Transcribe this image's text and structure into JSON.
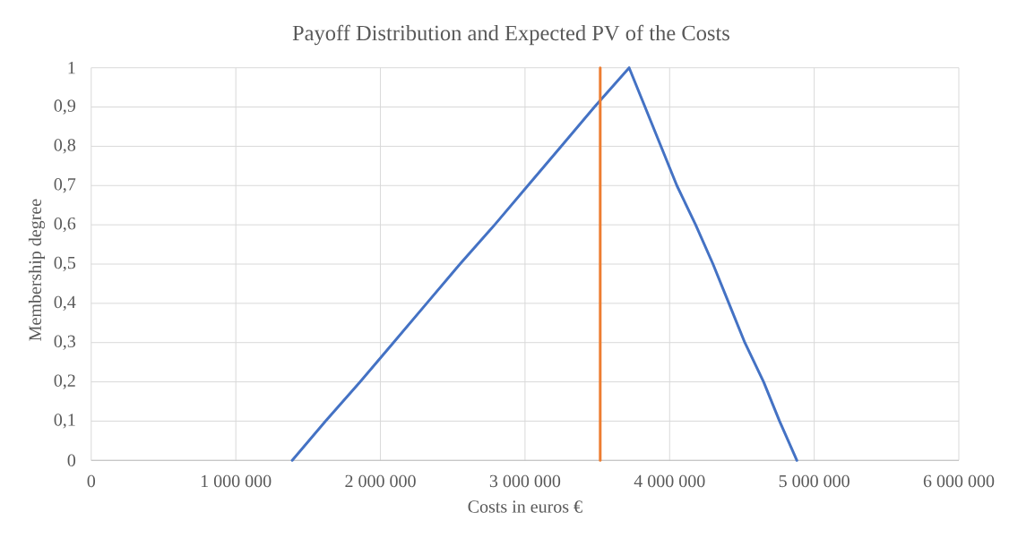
{
  "chart_data": {
    "type": "line",
    "title": "Payoff Distribution and Expected PV of the Costs",
    "xlabel": "Costs in euros €",
    "ylabel": "Membership degree",
    "series": [
      {
        "color": "#4472c4",
        "x": [
          1390000,
          1620000,
          1860000,
          2090000,
          2320000,
          2550000,
          2790000,
          3020000,
          3250000,
          3480000,
          3720000,
          3830000,
          3940000,
          4050000,
          4180000,
          4300000,
          4410000,
          4520000,
          4650000,
          4760000,
          4880000
        ],
        "values": [
          0,
          0.1,
          0.2,
          0.3,
          0.4,
          0.5,
          0.6,
          0.7,
          0.8,
          0.9,
          1,
          0.9,
          0.8,
          0.7,
          0.6,
          0.5,
          0.4,
          0.3,
          0.2,
          0.1,
          0
        ]
      },
      {
        "color": "#ed7d31",
        "x": [
          3520000,
          3520000
        ],
        "values": [
          0,
          1
        ]
      }
    ],
    "xlim": [
      0,
      6000000
    ],
    "xticks": [
      0,
      {
        "value": 1000000,
        "label": "1 000 000"
      },
      {
        "value": 2000000,
        "label": "2 000 000"
      },
      {
        "value": 3000000,
        "label": "3 000 000"
      },
      {
        "value": 4000000,
        "label": "4 000 000"
      },
      {
        "value": 5000000,
        "label": "5 000 000"
      },
      {
        "value": 6000000,
        "label": "6 000 000"
      }
    ],
    "ylim": [
      0,
      1
    ],
    "yticks": [
      0,
      {
        "value": 0.1,
        "label": "0,1"
      },
      {
        "value": 0.2,
        "label": "0,2"
      },
      {
        "value": 0.3,
        "label": "0,3"
      },
      {
        "value": 0.4,
        "label": "0,4"
      },
      {
        "value": 0.5,
        "label": "0,5"
      },
      {
        "value": 0.6,
        "label": "0,6"
      },
      {
        "value": 0.7,
        "label": "0,7"
      },
      {
        "value": 0.8,
        "label": "0,8"
      },
      {
        "value": 0.9,
        "label": "0,9"
      },
      1
    ],
    "grid": true,
    "marker": "none",
    "line_style": "solid"
  }
}
